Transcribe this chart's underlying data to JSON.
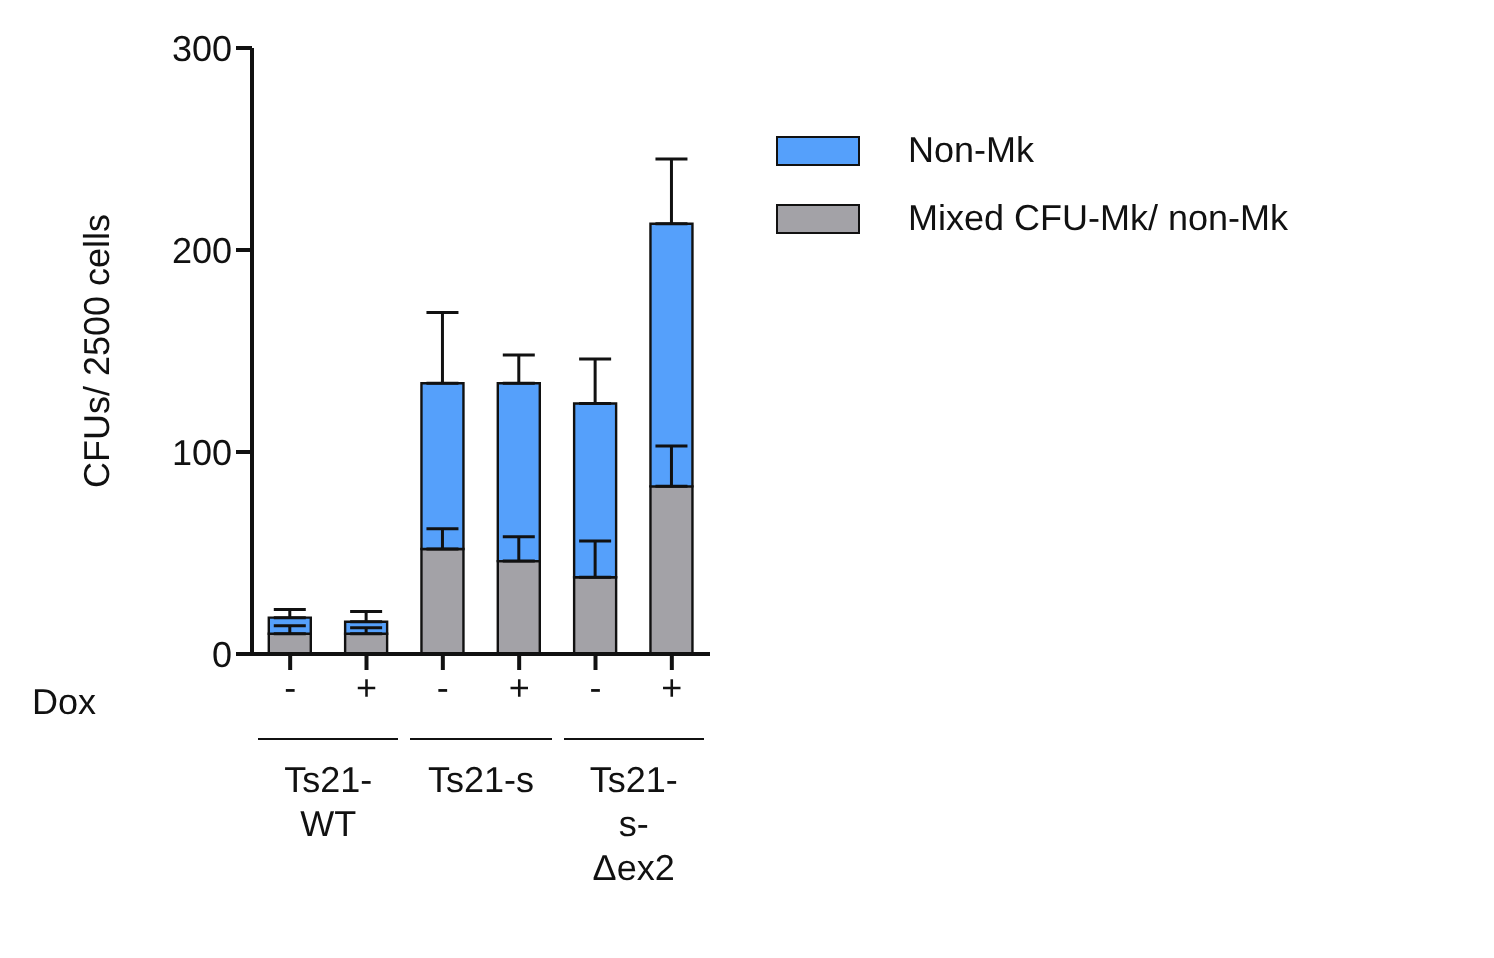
{
  "chart_data": {
    "type": "bar",
    "stacked": true,
    "ylabel": "CFUs/ 2500 cells",
    "categories": [
      "-",
      "+",
      "-",
      "+",
      "-",
      "+"
    ],
    "series": [
      {
        "name": "Mixed CFU-Mk/ non-Mk",
        "color": "#a3a2a7",
        "values": [
          10,
          10,
          52,
          46,
          38,
          83
        ],
        "errors": [
          [
            10,
            14
          ],
          [
            10,
            13
          ],
          [
            52,
            62
          ],
          [
            46,
            58
          ],
          [
            38,
            56
          ],
          [
            83,
            103
          ]
        ]
      },
      {
        "name": "Non-Mk",
        "color": "#55a0fb",
        "values": [
          8,
          6,
          82,
          88,
          86,
          130
        ],
        "errors": [
          [
            18,
            22
          ],
          [
            16,
            21
          ],
          [
            134,
            169
          ],
          [
            134,
            148
          ],
          [
            124,
            146
          ],
          [
            213,
            245
          ]
        ]
      }
    ],
    "ylim": [
      0,
      300
    ],
    "yticks": [
      0,
      100,
      200,
      300
    ],
    "grid": false,
    "legend": "top right",
    "annotations": [
      "Dox",
      "Ts21-WT",
      "Ts21-s",
      "Ts21-s-Δex2"
    ]
  }
}
